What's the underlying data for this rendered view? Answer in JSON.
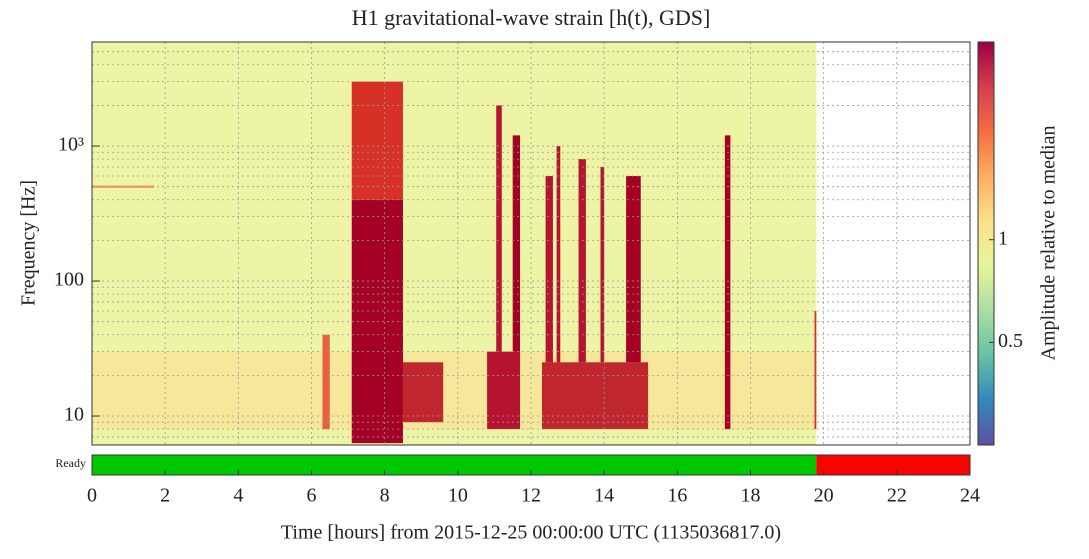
{
  "chart_data": {
    "type": "spectrogram",
    "title": "H1 gravitational-wave strain [h(t), GDS]",
    "x_label": "Time [hours] from 2015-12-25 00:00:00 UTC (1135036817.0)",
    "y_label": "Frequency [Hz]",
    "xlim": [
      0,
      24
    ],
    "xticks": [
      0,
      2,
      4,
      6,
      8,
      10,
      12,
      14,
      16,
      18,
      20,
      22,
      24
    ],
    "ylim": [
      6.1,
      5900
    ],
    "log_y": true,
    "yticks": [
      10,
      100,
      {
        "value": 1000,
        "label": "10³"
      }
    ],
    "yminor": [
      7,
      8,
      9,
      20,
      30,
      40,
      50,
      60,
      70,
      80,
      90,
      200,
      300,
      400,
      500,
      600,
      700,
      800,
      900,
      2000,
      3000,
      4000,
      5000
    ],
    "grid": true,
    "spectrogram": {
      "background": "#eef4a6",
      "end": 19.8,
      "bursts": [
        {
          "start": 0,
          "end": 19.8,
          "fmin": 8,
          "fmax": 30,
          "color": "#f6e79a"
        },
        {
          "start": 0,
          "end": 1.7,
          "fmin": 490,
          "fmax": 510,
          "color": "#f39a55"
        },
        {
          "start": 6.3,
          "end": 6.5,
          "fmin": 8,
          "fmax": 40,
          "color": "#e8603d"
        },
        {
          "start": 7.1,
          "end": 8.5,
          "fmin": 400,
          "fmax": 3000,
          "color": "#d73027"
        },
        {
          "start": 7.1,
          "end": 8.5,
          "fmin": 6.3,
          "fmax": 400,
          "color": "#a50026"
        },
        {
          "start": 8.5,
          "end": 9.6,
          "fmin": 9,
          "fmax": 25,
          "color": "#c0262d"
        },
        {
          "start": 10.8,
          "end": 11.7,
          "fmin": 8,
          "fmax": 30,
          "color": "#b5132f"
        },
        {
          "start": 11.05,
          "end": 11.2,
          "fmin": 30,
          "fmax": 2000,
          "color": "#b5132f"
        },
        {
          "start": 11.5,
          "end": 11.7,
          "fmin": 30,
          "fmax": 1200,
          "color": "#a50026"
        },
        {
          "start": 12.3,
          "end": 15.2,
          "fmin": 8,
          "fmax": 25,
          "color": "#c0262d"
        },
        {
          "start": 12.4,
          "end": 12.6,
          "fmin": 25,
          "fmax": 600,
          "color": "#b5132f"
        },
        {
          "start": 12.7,
          "end": 12.8,
          "fmin": 25,
          "fmax": 1000,
          "color": "#b5132f"
        },
        {
          "start": 13.3,
          "end": 13.5,
          "fmin": 25,
          "fmax": 800,
          "color": "#b5132f"
        },
        {
          "start": 13.9,
          "end": 14.0,
          "fmin": 25,
          "fmax": 700,
          "color": "#b5132f"
        },
        {
          "start": 14.6,
          "end": 15.0,
          "fmin": 25,
          "fmax": 600,
          "color": "#a50026"
        },
        {
          "start": 17.3,
          "end": 17.45,
          "fmin": 8,
          "fmax": 1200,
          "color": "#a50026"
        },
        {
          "start": 19.75,
          "end": 19.8,
          "fmin": 8,
          "fmax": 60,
          "color": "#d73027"
        }
      ]
    },
    "colorbar": {
      "label": "Amplitude relative to median",
      "clim": [
        0.25,
        3.8
      ],
      "ticks": [
        0.5,
        1
      ],
      "colormap": [
        "#5e4fa2",
        "#3288bd",
        "#66c2a5",
        "#abdda4",
        "#e6f598",
        "#fee08b",
        "#fdae61",
        "#f46d43",
        "#d53e4f",
        "#9e0142"
      ]
    },
    "segments": {
      "label": "Ready",
      "items": [
        {
          "start": 0,
          "end": 19.8,
          "color": "#00c800"
        },
        {
          "start": 19.8,
          "end": 24,
          "color": "#ff0000"
        }
      ]
    }
  }
}
